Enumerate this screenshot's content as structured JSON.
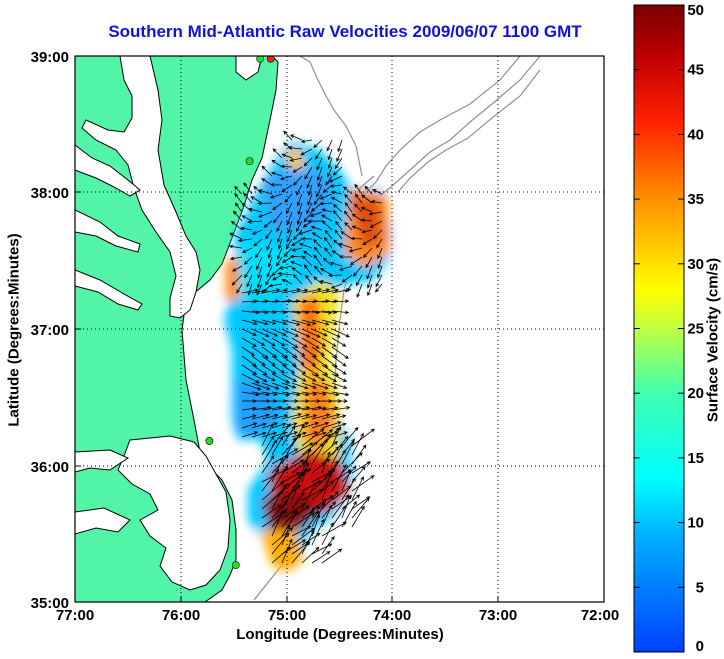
{
  "title": "Southern Mid-Atlantic Raw Velocities 2009/06/07 1100 GMT",
  "x_axis": {
    "label": "Longitude (Degrees:Minutes)",
    "ticks": [
      "77:00",
      "76:00",
      "75:00",
      "74:00",
      "73:00",
      "72:00"
    ]
  },
  "y_axis": {
    "label": "Latitude (Degrees:Minutes)",
    "ticks": [
      "39:00",
      "38:00",
      "37:00",
      "36:00",
      "35:00"
    ]
  },
  "colorbar": {
    "label": "Surface Velocity (cm/s)",
    "min": 0,
    "max": 50,
    "ticks": [
      "0",
      "5",
      "10",
      "15",
      "20",
      "25",
      "30",
      "35",
      "40",
      "45",
      "50"
    ]
  },
  "colors": {
    "land": "#52f5a8",
    "coast": "#000000",
    "title": "#1010e0",
    "bathymetry": "#909090",
    "station_green": "#22dd22",
    "station_red": "#ee2222"
  },
  "map": {
    "lon_range": [
      -77,
      -72
    ],
    "lat_range": [
      35,
      39
    ],
    "grid": "dotted"
  },
  "stations": [
    {
      "lon": -75.15,
      "lat": 38.98,
      "color": "red"
    },
    {
      "lon": -75.25,
      "lat": 38.98,
      "color": "green"
    },
    {
      "lon": -75.35,
      "lat": 38.23,
      "color": "green"
    },
    {
      "lon": -75.73,
      "lat": 36.18,
      "color": "green"
    },
    {
      "lon": -75.48,
      "lat": 35.27,
      "color": "green"
    }
  ]
}
